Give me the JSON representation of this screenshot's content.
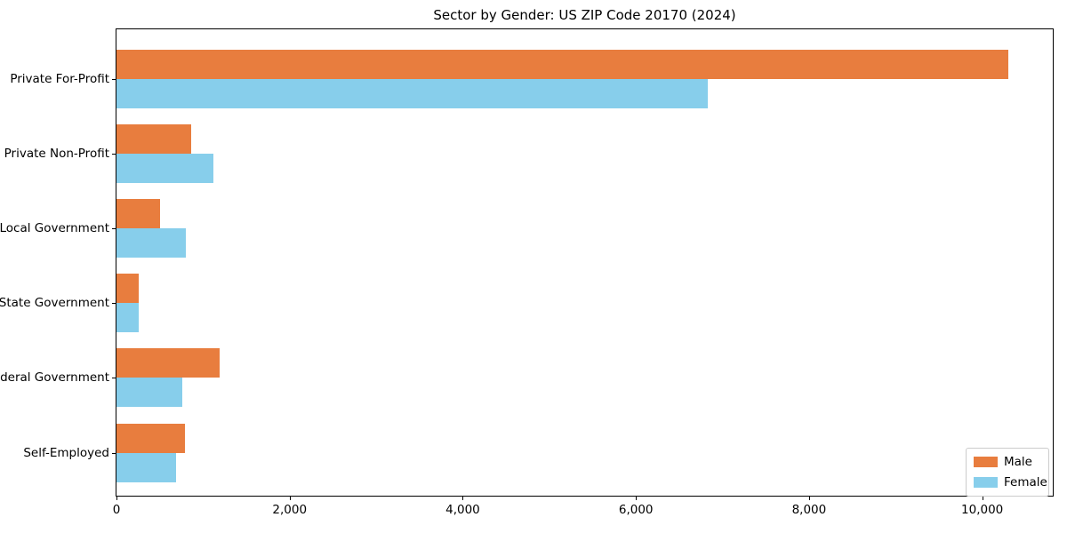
{
  "page": {
    "background_color": "#ffffff",
    "axis_color": "#000000"
  },
  "chart_data": {
    "type": "bar",
    "orientation": "horizontal",
    "title": "Sector by Gender: US ZIP Code 20170 (2024)",
    "xlabel": "",
    "ylabel": "",
    "grid": false,
    "legend_position": "lower right",
    "categories": [
      "Private For-Profit",
      "Private Non-Profit",
      "Local Government",
      "State Government",
      "Federal Government",
      "Self-Employed"
    ],
    "series": [
      {
        "name": "Male",
        "color": "#e87d3e",
        "values": [
          10300,
          860,
          500,
          260,
          1190,
          790
        ]
      },
      {
        "name": "Female",
        "color": "#87ceeb",
        "values": [
          6830,
          1120,
          800,
          260,
          760,
          690
        ]
      }
    ],
    "xlim": [
      0,
      10815
    ],
    "x_ticks": [
      {
        "value": 0,
        "label": "0"
      },
      {
        "value": 2000,
        "label": "2,000"
      },
      {
        "value": 4000,
        "label": "4,000"
      },
      {
        "value": 6000,
        "label": "6,000"
      },
      {
        "value": 8000,
        "label": "8,000"
      },
      {
        "value": 10000,
        "label": "10,000"
      }
    ]
  }
}
